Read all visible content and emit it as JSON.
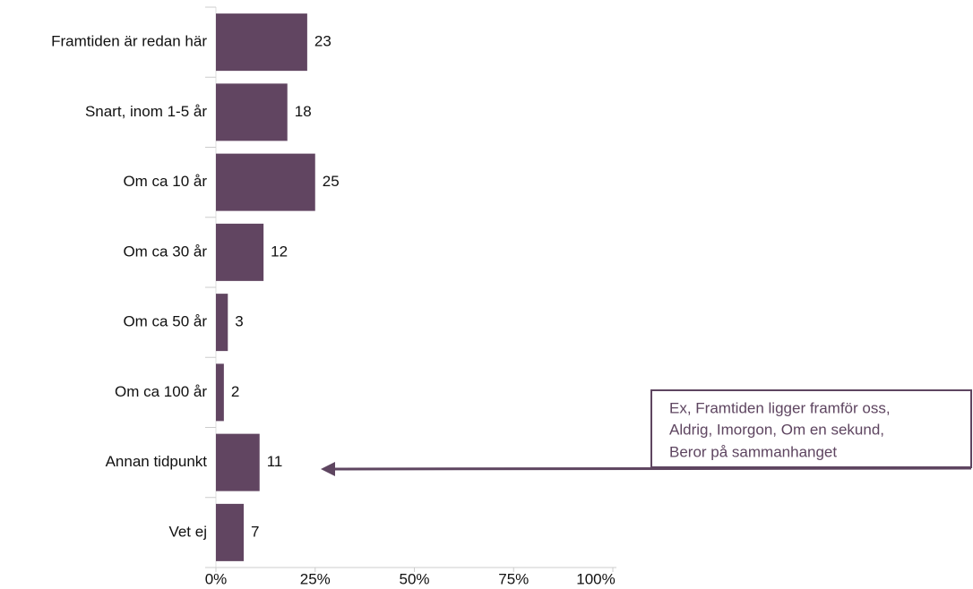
{
  "chart_data": {
    "type": "barh",
    "categories": [
      "Framtiden är redan här",
      "Snart, inom 1-5 år",
      "Om ca 10 år",
      "Om ca 30 år",
      "Om ca 50 år",
      "Om ca 100 år",
      "Annan tidpunkt",
      "Vet ej"
    ],
    "values": [
      23,
      18,
      25,
      12,
      3,
      2,
      11,
      7
    ],
    "color": "#614561",
    "xlim": [
      0,
      100
    ],
    "xticks": [
      {
        "value": 0,
        "label": "0%"
      },
      {
        "value": 25,
        "label": "25%"
      },
      {
        "value": 50,
        "label": "50%"
      },
      {
        "value": 75,
        "label": "75%"
      },
      {
        "value": 100,
        "label": "100%"
      }
    ],
    "annotation": [
      "Ex, Framtiden ligger framför oss,",
      "Aldrig, Imorgon, Om en sekund,",
      "Beror på sammanhanget"
    ]
  }
}
